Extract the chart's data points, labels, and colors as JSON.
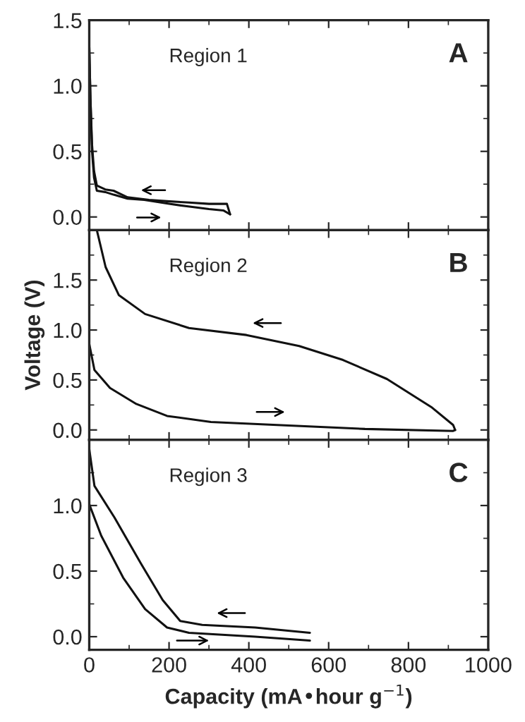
{
  "chart_data": [
    {
      "type": "line",
      "annotations": [
        "Region 1",
        "A"
      ],
      "xlim": [
        0,
        1000
      ],
      "xticks": [
        0,
        200,
        400,
        600,
        800,
        1000
      ],
      "ylim": [
        -0.1,
        1.5
      ],
      "yticks": [
        {
          "value": 0,
          "label": "0.0"
        },
        {
          "value": 0.5,
          "label": "0.5"
        },
        {
          "value": 1.0,
          "label": "1.0"
        },
        {
          "value": 1.5,
          "label": "1.5"
        }
      ],
      "tick_labels": "y",
      "series": [
        {
          "color": "#111111",
          "x": [
            0,
            3,
            7,
            12,
            19,
            40,
            61,
            96,
            138,
            200,
            248,
            300,
            336,
            353
          ],
          "values": [
            1.3,
            0.9,
            0.5,
            0.3,
            0.2,
            0.19,
            0.17,
            0.14,
            0.13,
            0.1,
            0.08,
            0.06,
            0.05,
            0.02
          ]
        },
        {
          "color": "#111111",
          "x": [
            353,
            345,
            300,
            250,
            195,
            150,
            96,
            61,
            40,
            19,
            12,
            7,
            3,
            0
          ],
          "values": [
            0.02,
            0.1,
            0.1,
            0.11,
            0.12,
            0.13,
            0.15,
            0.2,
            0.21,
            0.24,
            0.35,
            0.55,
            0.9,
            1.3
          ]
        }
      ]
    },
    {
      "type": "line",
      "annotations": [
        "Region 2",
        "B"
      ],
      "ylabel": "Voltage (V)",
      "xlim": [
        0,
        1000
      ],
      "xticks": [
        0,
        200,
        400,
        600,
        800,
        1000
      ],
      "ylim": [
        -0.1,
        2.0
      ],
      "yticks": [
        {
          "value": 0,
          "label": "0.0"
        },
        {
          "value": 0.5,
          "label": "0.5"
        },
        {
          "value": 1.0,
          "label": "1.0"
        },
        {
          "value": 1.5,
          "label": "1.5"
        }
      ],
      "tick_labels": "y",
      "series": [
        {
          "color": "#111111",
          "x": [
            0,
            13,
            52,
            118,
            195,
            305,
            471,
            691,
            912,
            917
          ],
          "values": [
            0.86,
            0.6,
            0.42,
            0.26,
            0.14,
            0.08,
            0.05,
            0.01,
            -0.01,
            0.0
          ]
        },
        {
          "color": "#111111",
          "x": [
            917,
            912,
            857,
            746,
            636,
            526,
            394,
            250,
            140,
            74,
            41,
            19
          ],
          "values": [
            0.0,
            0.05,
            0.23,
            0.51,
            0.7,
            0.84,
            0.95,
            1.02,
            1.16,
            1.35,
            1.63,
            2.0
          ]
        }
      ]
    },
    {
      "type": "line",
      "annotations": [
        "Region 3",
        "C"
      ],
      "xlabel": "Capacity (mA•hour g$^{−1}$)",
      "xlim": [
        0,
        1000
      ],
      "xticks": [
        0,
        200,
        400,
        600,
        800,
        1000
      ],
      "ylim": [
        -0.1,
        1.5
      ],
      "yticks": [
        {
          "value": 0,
          "label": "0.0"
        },
        {
          "value": 0.5,
          "label": "0.5"
        },
        {
          "value": 1.0,
          "label": "1.0"
        }
      ],
      "series": [
        {
          "color": "#111111",
          "x": [
            0,
            30,
            85,
            140,
            195,
            250,
            416,
            553
          ],
          "values": [
            1.01,
            0.77,
            0.45,
            0.21,
            0.07,
            0.03,
            0.0,
            -0.03
          ]
        },
        {
          "color": "#111111",
          "x": [
            553,
            416,
            283,
            228,
            184,
            129,
            63,
            13,
            0
          ],
          "values": [
            0.03,
            0.07,
            0.09,
            0.12,
            0.28,
            0.56,
            0.91,
            1.15,
            1.43
          ]
        }
      ]
    }
  ]
}
